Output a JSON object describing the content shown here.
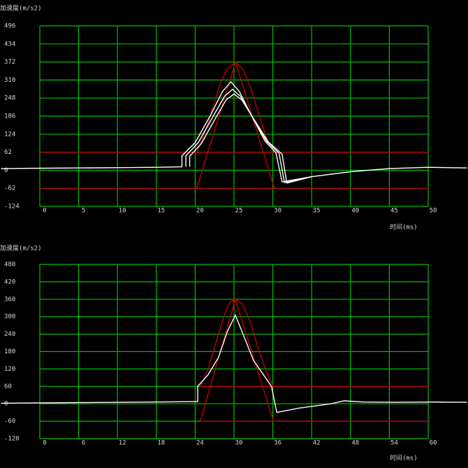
{
  "chart_data": [
    {
      "type": "line",
      "ylabel": "加速度(m/s2)",
      "xlabel": "时间(ms)",
      "xlim": [
        0,
        50
      ],
      "xticks": [
        0,
        5,
        10,
        15,
        20,
        25,
        30,
        35,
        40,
        45,
        50
      ],
      "ylim": [
        -124,
        496
      ],
      "yticks": [
        496,
        434,
        372,
        310,
        248,
        186,
        124,
        62,
        0,
        -62,
        -124
      ],
      "grid": true,
      "grid_color": "#00c000",
      "series": [
        {
          "color": "#c00000",
          "x": [
            0,
            50
          ],
          "values": [
            62,
            62
          ]
        },
        {
          "color": "#c00000",
          "x": [
            0,
            50
          ],
          "values": [
            -62,
            -62
          ]
        },
        {
          "color": "#c00000",
          "x": [
            20.2,
            21,
            22,
            23,
            24,
            25.2,
            26.2,
            27.2,
            28.2,
            29.2,
            30.2
          ],
          "values": [
            62,
            110,
            190,
            280,
            345,
            372,
            345,
            280,
            190,
            110,
            62
          ]
        },
        {
          "color": "#c00000",
          "x": [
            20.2,
            25.2,
            30.2
          ],
          "values": [
            -62,
            372,
            -62
          ]
        },
        {
          "color": "#ffffff",
          "x": [
            -5,
            0,
            5,
            10,
            15,
            18.3,
            18.3,
            20,
            22,
            23.5,
            24.6,
            25.7,
            27.2,
            29,
            30.4,
            31.2,
            35,
            40,
            45,
            50,
            55
          ],
          "values": [
            6,
            7,
            8,
            9,
            10,
            12,
            50,
            95,
            190,
            270,
            304,
            270,
            190,
            100,
            60,
            -40,
            -22,
            -5,
            6,
            10,
            8
          ]
        },
        {
          "color": "#ffffff",
          "x": [
            18.8,
            18.8,
            20.4,
            22.3,
            23.8,
            24.8,
            25.8,
            27.3,
            29.2,
            30.8,
            31.5,
            35
          ],
          "values": [
            12,
            50,
            95,
            185,
            255,
            278,
            255,
            185,
            100,
            58,
            -42,
            -22
          ]
        },
        {
          "color": "#ffffff",
          "x": [
            19.3,
            19.3,
            20.8,
            22.6,
            24,
            25,
            26,
            27.5,
            29.4,
            31.2,
            31.8,
            35
          ],
          "values": [
            12,
            48,
            92,
            178,
            242,
            262,
            242,
            178,
            98,
            55,
            -44,
            -22
          ]
        }
      ]
    },
    {
      "type": "line",
      "ylabel": "加速度(m/s2)",
      "xlabel": "时间(ms)",
      "xlim": [
        0,
        60
      ],
      "xticks": [
        0,
        6,
        12,
        18,
        24,
        30,
        36,
        42,
        48,
        54,
        60
      ],
      "ylim": [
        -120,
        480
      ],
      "yticks": [
        480,
        420,
        360,
        300,
        240,
        180,
        120,
        60,
        0,
        -60,
        -120
      ],
      "grid": true,
      "grid_color": "#00c000",
      "series": [
        {
          "color": "#c00000",
          "x": [
            24.8,
            60
          ],
          "values": [
            60,
            60
          ]
        },
        {
          "color": "#c00000",
          "x": [
            24.8,
            60
          ],
          "values": [
            -60,
            -60
          ]
        },
        {
          "color": "#c00000",
          "x": [
            24.8,
            26,
            27.2,
            28.4,
            29.4,
            30.2,
            31.2,
            32.4,
            33.6,
            35,
            36.1
          ],
          "values": [
            60,
            120,
            210,
            300,
            350,
            360,
            345,
            290,
            200,
            110,
            60
          ]
        },
        {
          "color": "#c00000",
          "x": [
            24.8,
            30.2,
            36.1
          ],
          "values": [
            -60,
            360,
            -60
          ]
        },
        {
          "color": "#ffffff",
          "x": [
            -6,
            0,
            6,
            12,
            18,
            24.4,
            24.4,
            26,
            27.6,
            29,
            30.2,
            31.4,
            33,
            35.8,
            36.6,
            40,
            45,
            47,
            50,
            55,
            60,
            66
          ],
          "values": [
            2,
            3,
            4,
            5,
            6,
            8,
            60,
            100,
            160,
            250,
            305,
            240,
            150,
            60,
            -30,
            -15,
            0,
            10,
            6,
            5,
            6,
            5
          ]
        }
      ]
    }
  ]
}
